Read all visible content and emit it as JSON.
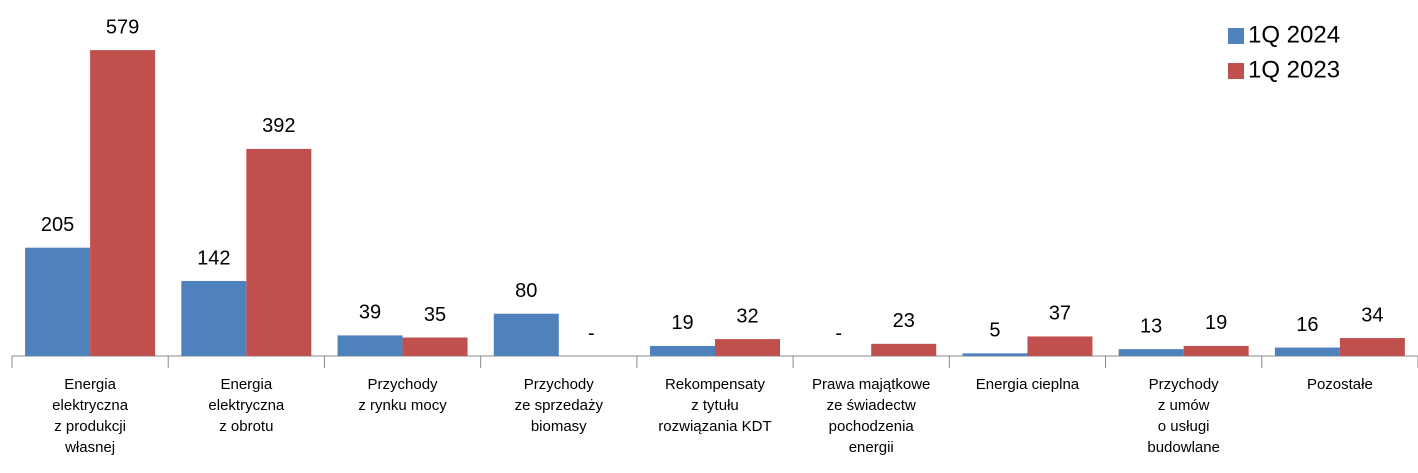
{
  "chart_data": {
    "type": "bar",
    "categories": [
      "Energia\nelektryczna\nz produkcji\nwłasnej",
      "Energia\nelektryczna\nz obrotu",
      "Przychody\nz rynku mocy",
      "Przychody\nze sprzedaży\nbiomasy",
      "Rekompensaty\nz tytułu\nrozwiązania KDT",
      "Prawa majątkowe\nze świadectw\npochodzenia\nenergii",
      "Energia cieplna",
      "Przychody\nz umów\no usługi\nbudowlane",
      "Pozostałe"
    ],
    "series": [
      {
        "name": "1Q 2024",
        "color": "#4f81bd",
        "values": [
          205,
          142,
          39,
          80,
          19,
          0,
          5,
          13,
          16
        ],
        "value_labels": [
          "205",
          "142",
          "39",
          "80",
          "19",
          "-",
          "5",
          "13",
          "16"
        ]
      },
      {
        "name": "1Q 2023",
        "color": "#c0504d",
        "values": [
          579,
          392,
          35,
          0,
          32,
          23,
          37,
          19,
          34
        ],
        "value_labels": [
          "579",
          "392",
          "35",
          "-",
          "32",
          "23",
          "37",
          "19",
          "34"
        ]
      }
    ],
    "ylim": [
      0,
      600
    ],
    "legend": "top-right"
  }
}
